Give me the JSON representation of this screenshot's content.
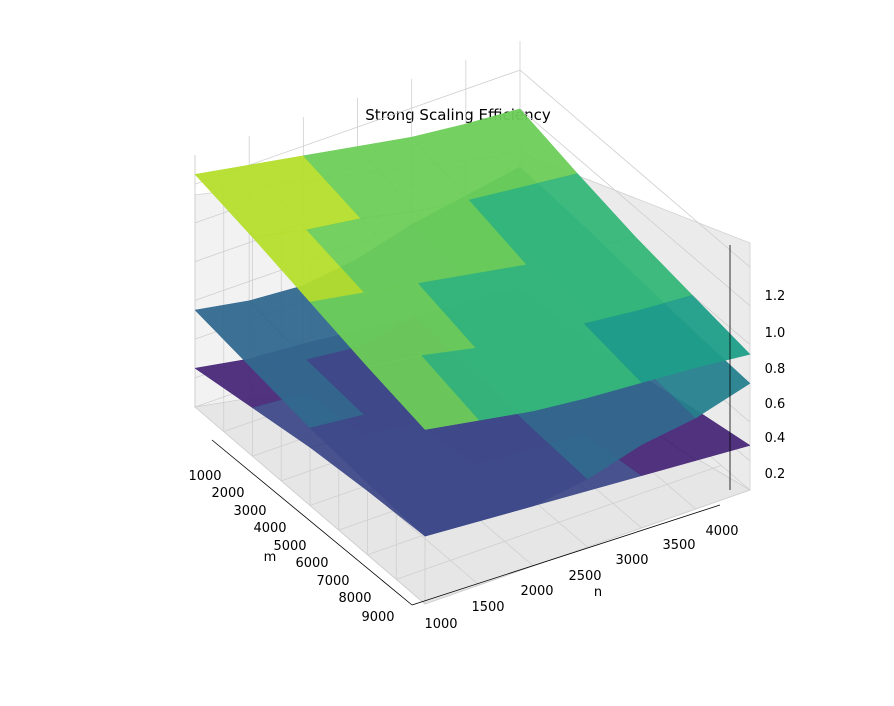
{
  "chart_data": {
    "type": "surface3d",
    "title": "Strong Scaling Efficiency",
    "xlabel": "m",
    "ylabel": "n",
    "zlabel": "",
    "x_ticks": [
      "1000",
      "2000",
      "3000",
      "4000",
      "5000",
      "6000",
      "7000",
      "8000",
      "9000"
    ],
    "y_ticks": [
      "1000",
      "1500",
      "2000",
      "2500",
      "3000",
      "3500",
      "4000"
    ],
    "z_ticks": [
      "0.2",
      "0.4",
      "0.6",
      "0.8",
      "1.0",
      "1.2"
    ],
    "xlim": [
      1000,
      9000
    ],
    "ylim": [
      1000,
      4000
    ],
    "zlim": [
      0.05,
      1.35
    ],
    "colormap": "viridis",
    "grid": true,
    "note_colors": [
      "#440154",
      "#3b528b",
      "#21918c",
      "#5ec962",
      "#fde725"
    ],
    "surfaces": [
      {
        "level": 0.08,
        "values": [
          [
            0.25,
            0.2,
            0.18,
            0.15,
            0.12,
            0.1,
            0.08
          ],
          [
            0.3,
            0.28,
            0.22,
            0.18,
            0.15,
            0.12,
            0.1
          ],
          [
            0.35,
            0.32,
            0.28,
            0.25,
            0.22,
            0.18,
            0.15
          ],
          [
            0.38,
            0.36,
            0.32,
            0.3,
            0.28,
            0.25,
            0.22
          ],
          [
            0.4,
            0.38,
            0.36,
            0.34,
            0.32,
            0.3,
            0.28
          ]
        ]
      },
      {
        "level": 0.45,
        "values": [
          [
            0.55,
            0.5,
            0.48,
            0.52,
            0.6,
            0.65,
            0.7
          ],
          [
            0.5,
            0.45,
            0.42,
            0.48,
            0.55,
            0.62,
            0.68
          ],
          [
            0.45,
            0.42,
            0.4,
            0.45,
            0.52,
            0.58,
            0.65
          ],
          [
            0.42,
            0.4,
            0.38,
            0.42,
            0.5,
            0.55,
            0.62
          ],
          [
            0.4,
            0.38,
            0.36,
            0.4,
            0.48,
            0.52,
            0.6
          ]
        ]
      },
      {
        "level": 0.8,
        "values": [
          [
            1.25,
            1.2,
            1.15,
            1.1,
            1.05,
            1.02,
            1.0
          ],
          [
            1.18,
            1.12,
            1.08,
            1.02,
            0.98,
            0.95,
            0.92
          ],
          [
            1.1,
            1.05,
            1.0,
            0.95,
            0.9,
            0.88,
            0.85
          ],
          [
            1.02,
            0.98,
            0.92,
            0.88,
            0.85,
            0.82,
            0.8
          ],
          [
            0.95,
            0.9,
            0.85,
            0.82,
            0.8,
            0.78,
            0.75
          ]
        ]
      }
    ]
  }
}
